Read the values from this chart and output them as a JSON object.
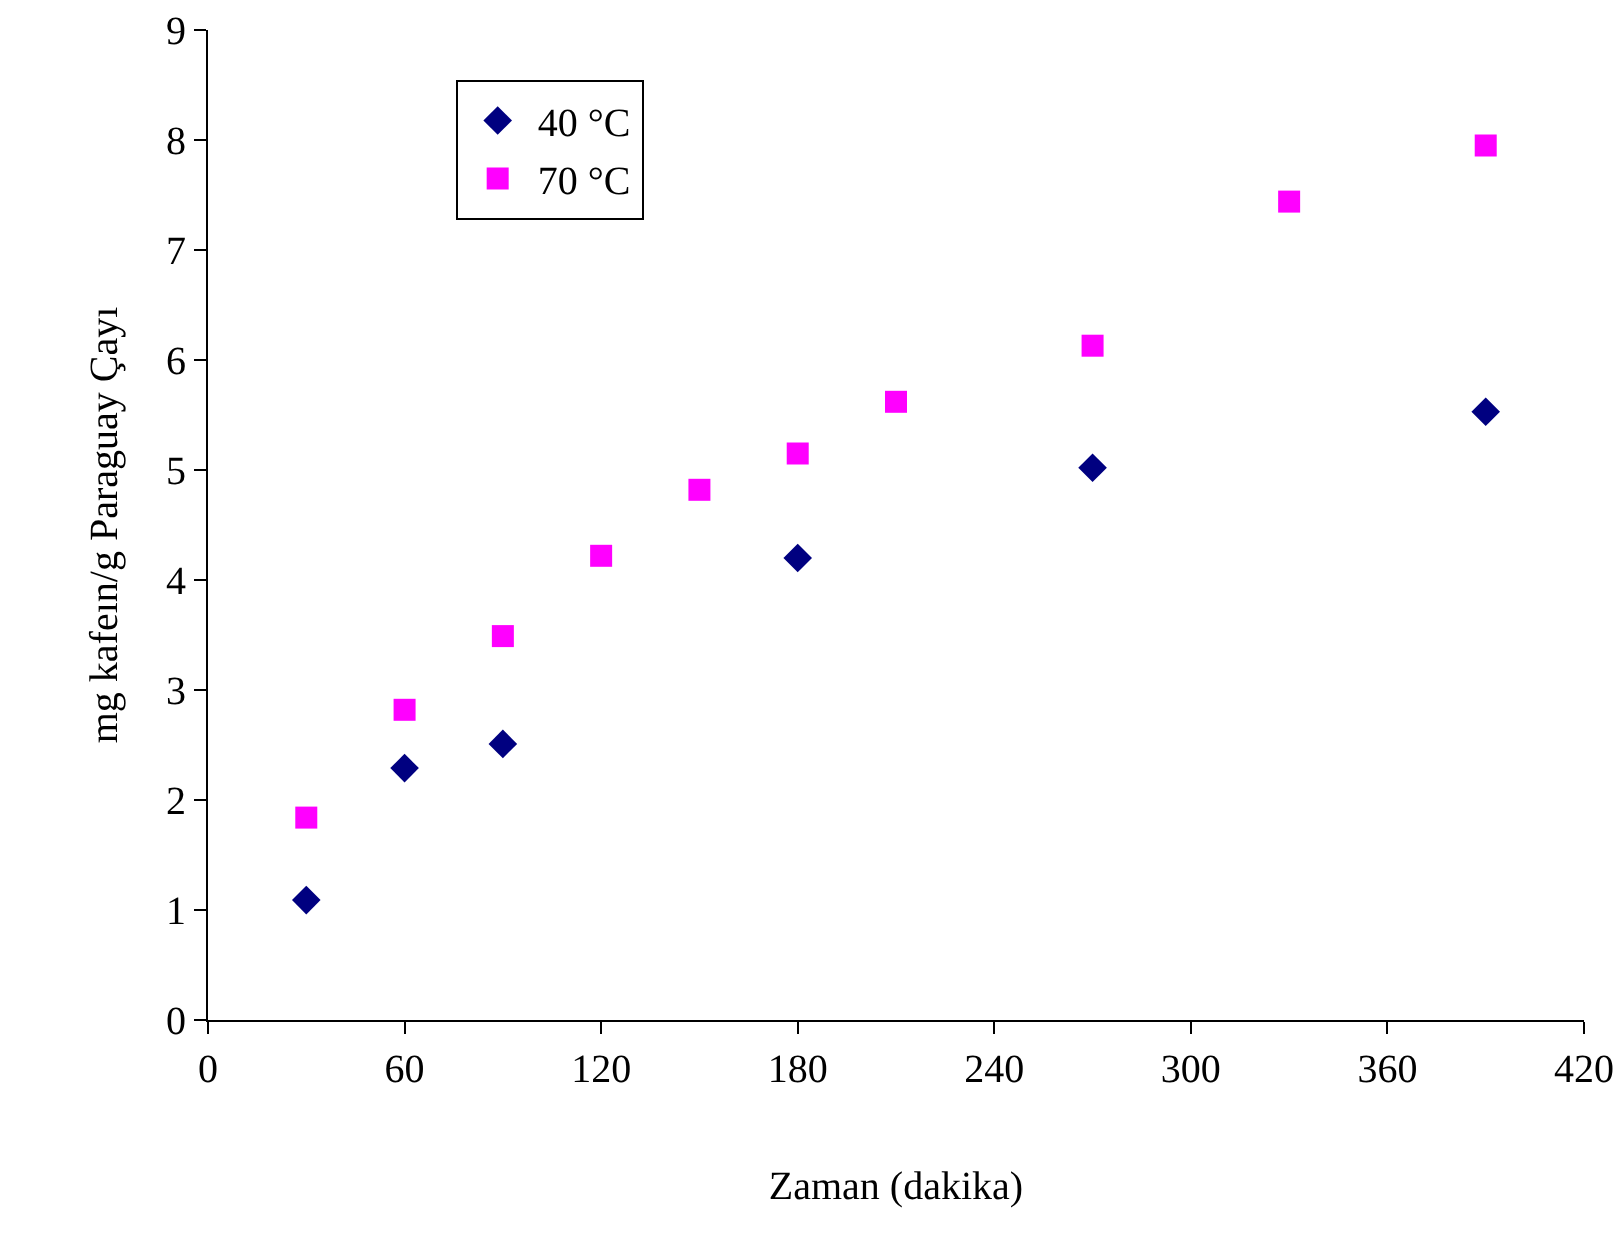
{
  "chart_data": {
    "type": "scatter",
    "xlabel": "Zaman (dakika)",
    "ylabel": "mg kafeın/g Paraguay Çayı",
    "xlim": [
      0,
      420
    ],
    "xticks": [
      0,
      60,
      120,
      180,
      240,
      300,
      360,
      420
    ],
    "ylim": [
      0,
      9
    ],
    "yticks": [
      0,
      1,
      2,
      3,
      4,
      5,
      6,
      7,
      8,
      9
    ],
    "grid": false,
    "legend": "top left",
    "series": [
      {
        "name": "40 °C",
        "color": "#000080",
        "marker": "diamond",
        "x": [
          30,
          60,
          90,
          180,
          270,
          390
        ],
        "values": [
          1.09,
          2.29,
          2.51,
          4.2,
          5.02,
          5.53
        ]
      },
      {
        "name": "70 °C",
        "color": "#ff00ff",
        "marker": "square",
        "x": [
          30,
          60,
          90,
          120,
          150,
          180,
          210,
          270,
          330,
          390
        ],
        "values": [
          1.84,
          2.82,
          3.49,
          4.22,
          4.82,
          5.15,
          5.62,
          6.13,
          7.44,
          7.95
        ]
      }
    ]
  }
}
